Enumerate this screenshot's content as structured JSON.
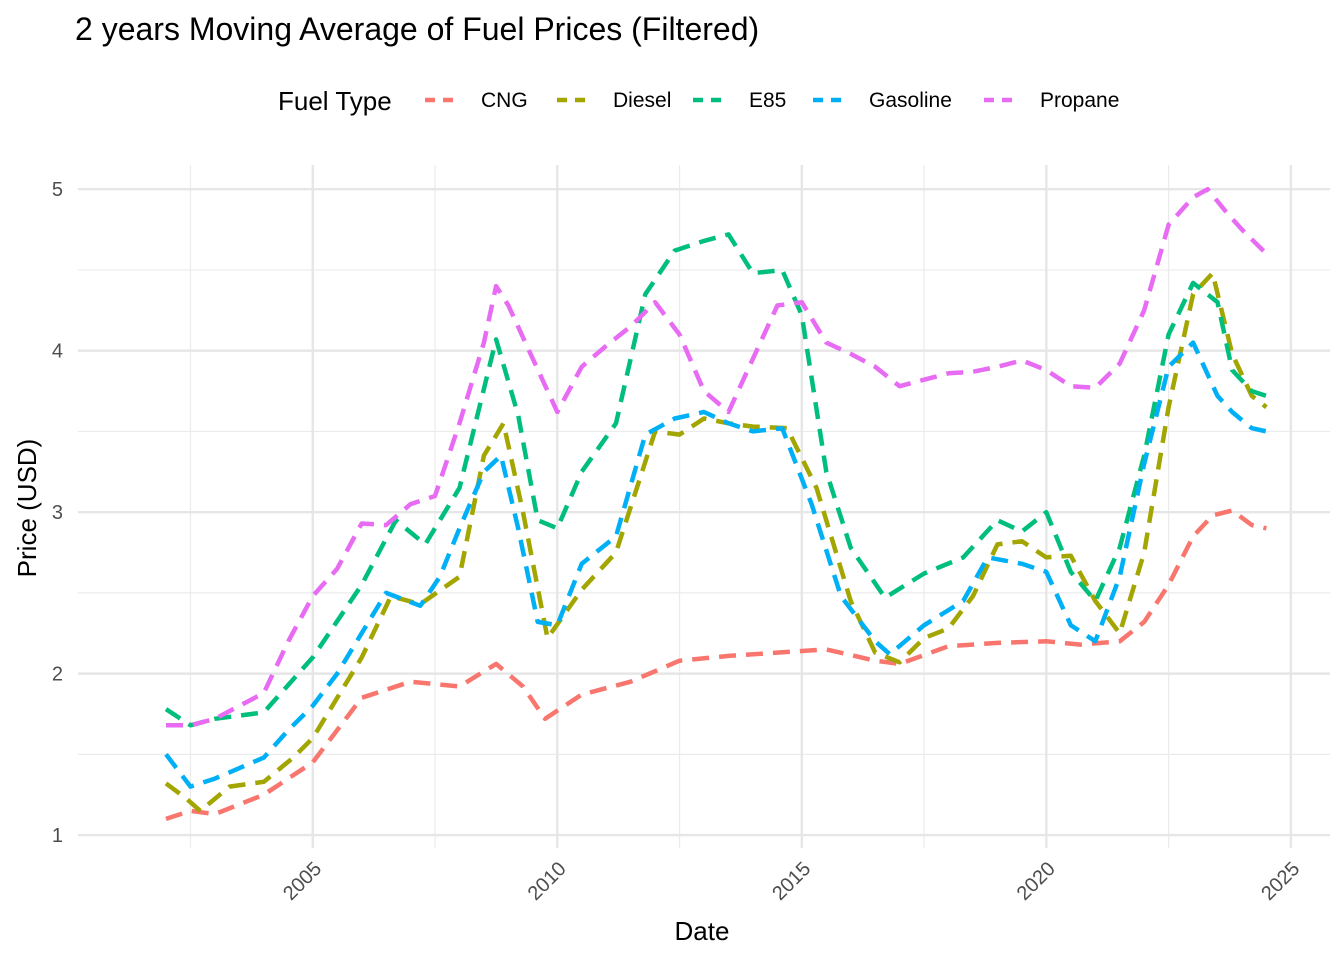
{
  "chart_data": {
    "type": "line",
    "title": "2 years Moving Average of Fuel Prices (Filtered)",
    "xlabel": "Date",
    "ylabel": "Price (USD)",
    "xlim": [
      2000.2,
      2025.8
    ],
    "ylim": [
      0.92,
      5.15
    ],
    "x_ticks": [
      2005,
      2010,
      2015,
      2020,
      2025
    ],
    "y_ticks": [
      1,
      2,
      3,
      4,
      5
    ],
    "grid": true,
    "legend_title": "Fuel Type",
    "legend_position": "top",
    "line_style": "dashed",
    "series": [
      {
        "name": "CNG",
        "color": "#F8766D",
        "x": [
          2002.0,
          2002.5,
          2003.0,
          2004.0,
          2005.0,
          2006.0,
          2007.0,
          2008.0,
          2008.75,
          2009.3,
          2009.75,
          2010.5,
          2011.5,
          2012.5,
          2013.5,
          2014.5,
          2015.5,
          2016.5,
          2017.0,
          2018.0,
          2019.0,
          2020.0,
          2020.7,
          2021.5,
          2022.0,
          2022.5,
          2023.0,
          2023.4,
          2023.8,
          2024.2,
          2024.5
        ],
        "y": [
          1.1,
          1.15,
          1.13,
          1.25,
          1.45,
          1.85,
          1.95,
          1.92,
          2.06,
          1.92,
          1.72,
          1.87,
          1.95,
          2.08,
          2.11,
          2.13,
          2.15,
          2.08,
          2.06,
          2.17,
          2.19,
          2.2,
          2.18,
          2.2,
          2.32,
          2.55,
          2.85,
          2.98,
          3.01,
          2.92,
          2.9
        ]
      },
      {
        "name": "Diesel",
        "color": "#A3A500",
        "x": [
          2002.0,
          2002.4,
          2002.7,
          2003.3,
          2004.0,
          2004.6,
          2005.0,
          2006.0,
          2006.6,
          2007.2,
          2008.0,
          2008.5,
          2008.9,
          2009.3,
          2009.8,
          2010.5,
          2011.2,
          2012.0,
          2012.5,
          2013.0,
          2013.5,
          2014.0,
          2014.7,
          2015.3,
          2016.0,
          2016.5,
          2017.0,
          2017.5,
          2018.0,
          2018.5,
          2019.0,
          2019.5,
          2020.0,
          2020.5,
          2021.0,
          2021.5,
          2022.0,
          2022.5,
          2023.0,
          2023.4,
          2023.8,
          2024.2,
          2024.5
        ],
        "y": [
          1.32,
          1.23,
          1.15,
          1.3,
          1.33,
          1.48,
          1.6,
          2.1,
          2.48,
          2.43,
          2.6,
          3.35,
          3.55,
          3.0,
          2.22,
          2.52,
          2.75,
          3.5,
          3.48,
          3.58,
          3.55,
          3.53,
          3.52,
          3.15,
          2.45,
          2.13,
          2.07,
          2.22,
          2.28,
          2.48,
          2.8,
          2.82,
          2.72,
          2.73,
          2.45,
          2.25,
          2.75,
          3.65,
          4.35,
          4.48,
          3.98,
          3.72,
          3.65
        ]
      },
      {
        "name": "E85",
        "color": "#00BF7D",
        "x": [
          2002.0,
          2002.5,
          2003.0,
          2004.0,
          2005.0,
          2006.0,
          2006.7,
          2007.3,
          2008.0,
          2008.75,
          2009.2,
          2009.6,
          2010.0,
          2010.5,
          2011.2,
          2011.8,
          2012.4,
          2013.0,
          2013.5,
          2014.0,
          2014.6,
          2015.0,
          2015.5,
          2016.0,
          2016.7,
          2017.5,
          2018.3,
          2019.0,
          2019.5,
          2020.0,
          2020.5,
          2021.0,
          2021.5,
          2022.0,
          2022.5,
          2023.0,
          2023.5,
          2023.8,
          2024.2,
          2024.5
        ],
        "y": [
          1.78,
          1.68,
          1.72,
          1.76,
          2.1,
          2.55,
          2.95,
          2.8,
          3.15,
          4.07,
          3.6,
          2.95,
          2.9,
          3.25,
          3.55,
          4.35,
          4.62,
          4.68,
          4.72,
          4.48,
          4.5,
          4.22,
          3.25,
          2.78,
          2.47,
          2.62,
          2.72,
          2.95,
          2.88,
          3.0,
          2.63,
          2.45,
          2.78,
          3.35,
          4.1,
          4.42,
          4.3,
          3.88,
          3.75,
          3.72
        ]
      },
      {
        "name": "Gasoline",
        "color": "#00B0F6",
        "x": [
          2002.0,
          2002.5,
          2003.0,
          2004.0,
          2004.5,
          2005.0,
          2005.5,
          2006.5,
          2007.2,
          2007.6,
          2008.0,
          2008.5,
          2008.85,
          2009.2,
          2009.6,
          2010.0,
          2010.5,
          2011.2,
          2011.8,
          2012.4,
          2013.0,
          2013.5,
          2014.0,
          2014.6,
          2015.2,
          2015.8,
          2016.5,
          2016.8,
          2017.5,
          2018.3,
          2018.8,
          2019.5,
          2020.0,
          2020.5,
          2021.0,
          2021.5,
          2022.0,
          2022.5,
          2023.0,
          2023.5,
          2023.8,
          2024.2,
          2024.5
        ],
        "y": [
          1.5,
          1.3,
          1.35,
          1.48,
          1.65,
          1.8,
          2.0,
          2.5,
          2.42,
          2.6,
          2.9,
          3.25,
          3.35,
          2.9,
          2.32,
          2.3,
          2.68,
          2.85,
          3.48,
          3.58,
          3.62,
          3.55,
          3.5,
          3.52,
          3.05,
          2.48,
          2.2,
          2.12,
          2.3,
          2.45,
          2.72,
          2.68,
          2.63,
          2.3,
          2.2,
          2.6,
          3.3,
          3.9,
          4.05,
          3.72,
          3.62,
          3.52,
          3.5
        ]
      },
      {
        "name": "Propane",
        "color": "#E76BF3",
        "x": [
          2002.0,
          2002.5,
          2003.0,
          2003.5,
          2004.0,
          2004.5,
          2005.0,
          2005.5,
          2006.0,
          2006.5,
          2007.0,
          2007.5,
          2008.0,
          2008.5,
          2008.75,
          2009.0,
          2009.5,
          2010.0,
          2010.5,
          2011.0,
          2011.5,
          2012.0,
          2012.5,
          2013.0,
          2013.5,
          2014.0,
          2014.5,
          2015.0,
          2015.5,
          2016.0,
          2016.5,
          2017.0,
          2017.5,
          2018.0,
          2018.5,
          2019.0,
          2019.5,
          2020.0,
          2020.5,
          2021.0,
          2021.5,
          2022.0,
          2022.5,
          2023.0,
          2023.3,
          2023.7,
          2024.0,
          2024.5
        ],
        "y": [
          1.68,
          1.68,
          1.72,
          1.8,
          1.88,
          2.2,
          2.48,
          2.65,
          2.93,
          2.92,
          3.05,
          3.1,
          3.55,
          4.05,
          4.4,
          4.28,
          3.95,
          3.62,
          3.9,
          4.03,
          4.15,
          4.3,
          4.1,
          3.75,
          3.62,
          3.95,
          4.28,
          4.3,
          4.05,
          3.98,
          3.9,
          3.78,
          3.82,
          3.86,
          3.87,
          3.9,
          3.94,
          3.88,
          3.78,
          3.77,
          3.92,
          4.25,
          4.78,
          4.95,
          5.0,
          4.85,
          4.75,
          4.6
        ]
      }
    ]
  }
}
